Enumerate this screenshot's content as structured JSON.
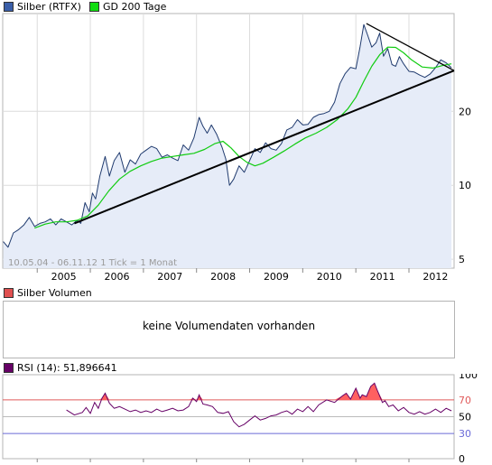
{
  "chart_data": [
    {
      "type": "line",
      "title": "",
      "scale": "log",
      "ylim": [
        4.6,
        50
      ],
      "yticks": [
        5,
        10,
        20
      ],
      "xlim": [
        2004.35,
        2012.85
      ],
      "xticks": [
        "2005",
        "2006",
        "2007",
        "2008",
        "2009",
        "2010",
        "2011",
        "2012"
      ],
      "grid": true,
      "date_range_label": "10.05.04 - 06.11.12   1 Tick = 1 Monat",
      "series": [
        {
          "name": "Silber (RTFX)",
          "color": "#1f3a6e",
          "fill": "#e6ecf8",
          "x": [
            2004.36,
            2004.45,
            2004.55,
            2004.65,
            2004.75,
            2004.85,
            2004.95,
            2005.05,
            2005.15,
            2005.25,
            2005.35,
            2005.45,
            2005.55,
            2005.65,
            2005.75,
            2005.82,
            2005.9,
            2005.98,
            2006.04,
            2006.1,
            2006.18,
            2006.28,
            2006.36,
            2006.45,
            2006.55,
            2006.65,
            2006.75,
            2006.85,
            2006.95,
            2007.05,
            2007.15,
            2007.25,
            2007.35,
            2007.45,
            2007.55,
            2007.65,
            2007.75,
            2007.85,
            2007.95,
            2008.05,
            2008.12,
            2008.2,
            2008.28,
            2008.38,
            2008.48,
            2008.55,
            2008.62,
            2008.7,
            2008.8,
            2008.9,
            2009.0,
            2009.1,
            2009.2,
            2009.3,
            2009.4,
            2009.5,
            2009.6,
            2009.7,
            2009.8,
            2009.9,
            2010.0,
            2010.1,
            2010.2,
            2010.3,
            2010.4,
            2010.5,
            2010.6,
            2010.7,
            2010.8,
            2010.9,
            2011.0,
            2011.08,
            2011.15,
            2011.22,
            2011.3,
            2011.38,
            2011.45,
            2011.52,
            2011.6,
            2011.68,
            2011.75,
            2011.82,
            2011.9,
            2012.0,
            2012.1,
            2012.2,
            2012.3,
            2012.4,
            2012.5,
            2012.6,
            2012.7,
            2012.8
          ],
          "y": [
            5.9,
            5.6,
            6.4,
            6.6,
            6.9,
            7.4,
            6.8,
            7.0,
            7.1,
            7.3,
            6.9,
            7.3,
            7.1,
            6.9,
            7.2,
            7.0,
            8.5,
            7.8,
            9.3,
            8.8,
            10.9,
            13.1,
            10.9,
            12.6,
            13.6,
            11.3,
            12.7,
            12.2,
            13.4,
            13.9,
            14.4,
            14.1,
            13.0,
            13.3,
            12.9,
            12.6,
            14.6,
            13.9,
            15.6,
            18.9,
            17.4,
            16.3,
            17.6,
            16.1,
            14.3,
            12.8,
            10.0,
            10.6,
            12.0,
            11.3,
            12.6,
            14.1,
            13.6,
            14.9,
            14.1,
            13.9,
            14.8,
            16.8,
            17.2,
            18.5,
            17.6,
            17.7,
            18.9,
            19.4,
            19.6,
            20.0,
            21.8,
            25.9,
            28.5,
            30.2,
            29.8,
            36.7,
            45.1,
            41.0,
            36.5,
            38.0,
            41.6,
            33.5,
            36.0,
            31.0,
            30.5,
            33.4,
            31.2,
            29.1,
            28.9,
            28.1,
            27.5,
            28.4,
            30.1,
            32.4,
            31.5,
            30.1
          ]
        },
        {
          "name": "GD 200 Tage",
          "color": "#11cc11",
          "x": [
            2004.95,
            2005.15,
            2005.35,
            2005.55,
            2005.75,
            2005.95,
            2006.15,
            2006.35,
            2006.55,
            2006.75,
            2006.95,
            2007.15,
            2007.35,
            2007.55,
            2007.75,
            2007.95,
            2008.15,
            2008.35,
            2008.5,
            2008.65,
            2008.8,
            2008.95,
            2009.1,
            2009.25,
            2009.45,
            2009.65,
            2009.85,
            2010.05,
            2010.25,
            2010.45,
            2010.65,
            2010.85,
            2011.0,
            2011.15,
            2011.3,
            2011.45,
            2011.6,
            2011.75,
            2011.9,
            2012.05,
            2012.25,
            2012.45,
            2012.65,
            2012.8
          ],
          "y": [
            6.7,
            6.95,
            7.1,
            7.1,
            7.2,
            7.5,
            8.3,
            9.5,
            10.6,
            11.4,
            12.0,
            12.5,
            12.9,
            13.1,
            13.3,
            13.5,
            14.0,
            14.8,
            15.1,
            14.2,
            13.1,
            12.4,
            12.0,
            12.3,
            13.0,
            13.8,
            14.7,
            15.6,
            16.3,
            17.2,
            18.5,
            20.5,
            22.8,
            26.5,
            30.5,
            34.0,
            36.5,
            36.4,
            34.6,
            32.4,
            30.3,
            30.0,
            30.8,
            31.2
          ]
        },
        {
          "name": "Trendlinie",
          "color": "#000000",
          "x": [
            2005.7,
            2012.85
          ],
          "y": [
            7.0,
            29.3
          ]
        },
        {
          "name": "Widerstandslinie",
          "color": "#000000",
          "x": [
            2011.2,
            2012.85
          ],
          "y": [
            45.5,
            29.3
          ]
        }
      ]
    },
    {
      "type": "bar",
      "title": "Silber Volumen",
      "empty_message": "keine Volumendaten vorhanden",
      "values": []
    },
    {
      "type": "line",
      "title": "RSI (14): 51,896641",
      "ylim": [
        0,
        100
      ],
      "yticks": [
        0,
        30,
        50,
        70,
        100
      ],
      "overbought": 70,
      "oversold": 30,
      "series": [
        {
          "name": "RSI (14)",
          "color": "#660066",
          "x": [
            2005.55,
            2005.7,
            2005.85,
            2005.92,
            2006.0,
            2006.08,
            2006.15,
            2006.22,
            2006.28,
            2006.36,
            2006.45,
            2006.55,
            2006.65,
            2006.75,
            2006.85,
            2006.95,
            2007.05,
            2007.15,
            2007.25,
            2007.35,
            2007.45,
            2007.55,
            2007.65,
            2007.75,
            2007.85,
            2007.93,
            2008.0,
            2008.05,
            2008.12,
            2008.2,
            2008.3,
            2008.4,
            2008.5,
            2008.6,
            2008.7,
            2008.8,
            2008.9,
            2009.0,
            2009.1,
            2009.2,
            2009.3,
            2009.4,
            2009.5,
            2009.6,
            2009.7,
            2009.8,
            2009.9,
            2010.0,
            2010.1,
            2010.2,
            2010.3,
            2010.45,
            2010.6,
            2010.75,
            2010.82,
            2010.9,
            2011.0,
            2011.08,
            2011.12,
            2011.2,
            2011.28,
            2011.35,
            2011.4,
            2011.5,
            2011.55,
            2011.62,
            2011.7,
            2011.8,
            2011.9,
            2012.0,
            2012.1,
            2012.2,
            2012.3,
            2012.4,
            2012.5,
            2012.6,
            2012.7,
            2012.8
          ],
          "y": [
            58,
            52,
            55,
            61,
            54,
            67,
            60,
            72,
            78,
            66,
            60,
            62,
            59,
            56,
            58,
            55,
            57,
            55,
            59,
            56,
            58,
            60,
            57,
            58,
            62,
            72,
            68,
            76,
            65,
            64,
            62,
            55,
            54,
            56,
            44,
            38,
            41,
            46,
            51,
            46,
            48,
            51,
            52,
            55,
            57,
            53,
            59,
            56,
            62,
            56,
            64,
            70,
            67,
            75,
            78,
            71,
            84,
            72,
            76,
            74,
            86,
            90,
            82,
            67,
            69,
            62,
            64,
            57,
            61,
            55,
            53,
            56,
            53,
            55,
            59,
            55,
            60,
            57
          ]
        }
      ]
    }
  ]
}
